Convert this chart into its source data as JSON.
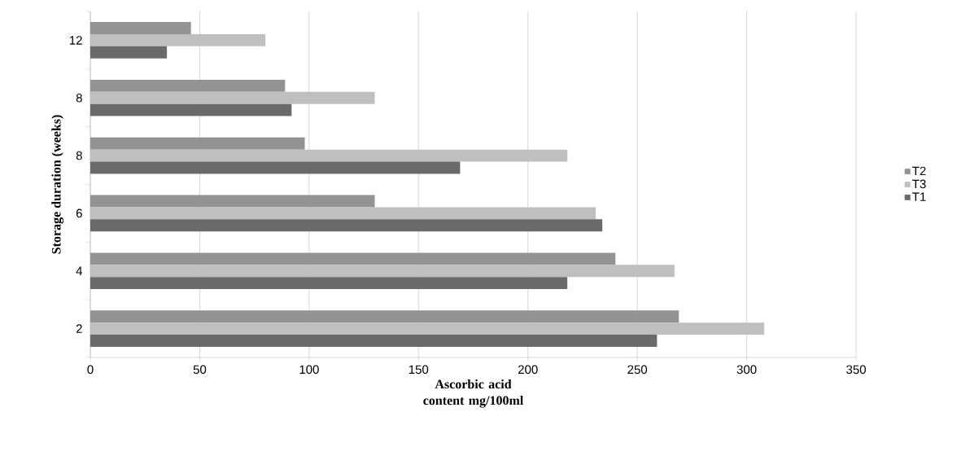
{
  "chart_data": {
    "type": "bar",
    "orientation": "horizontal",
    "xlabel": "Ascorbic acid content mg/100ml",
    "ylabel": "Storage duration  (weeks)",
    "categories": [
      "12",
      "8",
      "8",
      "6",
      "4",
      "2"
    ],
    "series": [
      {
        "name": "T2",
        "color": "#939393",
        "values": [
          46,
          89,
          98,
          130,
          240,
          269
        ]
      },
      {
        "name": "T3",
        "color": "#bfbfbf",
        "values": [
          80,
          130,
          218,
          231,
          267,
          308
        ]
      },
      {
        "name": "T1",
        "color": "#6a6a6a",
        "values": [
          35,
          92,
          169,
          234,
          218,
          259
        ]
      }
    ],
    "xlim": [
      0,
      350
    ],
    "xticks": [
      0,
      50,
      100,
      150,
      200,
      250,
      300,
      350
    ],
    "grid": "x",
    "legend": "right"
  }
}
